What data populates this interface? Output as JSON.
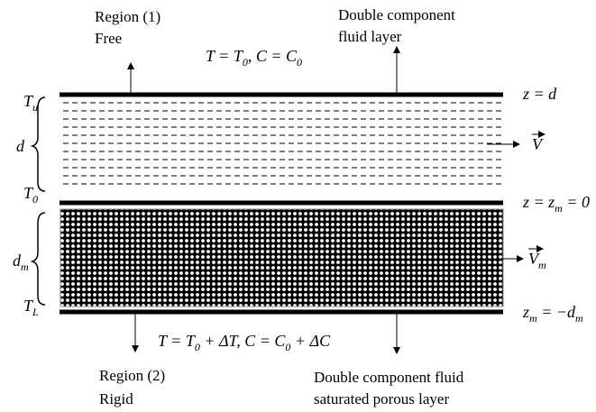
{
  "regions": {
    "top": {
      "title": "Region (1)",
      "type": "Free"
    },
    "bottom": {
      "title": "Region (2)",
      "type": "Rigid"
    }
  },
  "layers": {
    "fluid": [
      "Double component",
      "fluid layer"
    ],
    "porous": [
      "Double component fluid",
      "saturated porous layer"
    ]
  },
  "conditions": {
    "top": [
      {
        "t": "T = T"
      },
      {
        "sub": "0"
      },
      {
        "t": ", C = C"
      },
      {
        "sub": "0"
      }
    ],
    "bottom": [
      {
        "t": "T = T"
      },
      {
        "sub": "0"
      },
      {
        "t": " + ΔT, C = C"
      },
      {
        "sub": "0"
      },
      {
        "t": " + ΔC"
      }
    ]
  },
  "boundaries": {
    "top": [
      {
        "t": "z = d"
      }
    ],
    "interface": [
      {
        "t": "z = z"
      },
      {
        "sub": "m"
      },
      {
        "t": " = 0"
      }
    ],
    "bottom": [
      {
        "t": "z"
      },
      {
        "sub": "m"
      },
      {
        "t": " = −d"
      },
      {
        "sub": "m"
      }
    ]
  },
  "temperatures": {
    "upper": [
      {
        "t": "T"
      },
      {
        "sub": "u"
      }
    ],
    "interface": [
      {
        "t": "T"
      },
      {
        "sub": "0"
      }
    ],
    "lower": [
      {
        "t": "T"
      },
      {
        "sub": "L"
      }
    ]
  },
  "thicknesses": {
    "fluid": [
      {
        "t": "d"
      }
    ],
    "porous": [
      {
        "t": "d"
      },
      {
        "sub": "m"
      }
    ]
  },
  "velocities": {
    "fluid": [
      {
        "t": "V"
      }
    ],
    "porous": [
      {
        "t": "V"
      },
      {
        "sub": "m"
      }
    ]
  }
}
